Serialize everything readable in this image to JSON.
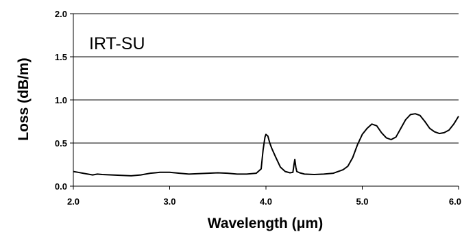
{
  "chart_data": {
    "type": "line",
    "title": "",
    "xlabel": "Wavelength (μm)",
    "ylabel": "Loss (dB/m)",
    "xlim": [
      2.0,
      6.0
    ],
    "ylim": [
      0.0,
      2.0
    ],
    "x_ticks": [
      "2.0",
      "3.0",
      "4.0",
      "5.0",
      "6.0"
    ],
    "y_ticks": [
      "0.0",
      "0.5",
      "1.0",
      "1.5",
      "2.0"
    ],
    "grid": "horizontal",
    "legend": "none",
    "annotation": "IRT-SU",
    "line_color": "#000000",
    "series": [
      {
        "x": [
          2.0,
          2.05,
          2.1,
          2.15,
          2.2,
          2.25,
          2.3,
          2.4,
          2.5,
          2.6,
          2.7,
          2.75,
          2.8,
          2.85,
          2.9,
          3.0,
          3.1,
          3.2,
          3.3,
          3.4,
          3.5,
          3.6,
          3.7,
          3.8,
          3.9,
          3.95,
          3.97,
          3.99,
          4.0,
          4.02,
          4.04,
          4.06,
          4.1,
          4.15,
          4.2,
          4.25,
          4.28,
          4.29,
          4.3,
          4.31,
          4.32,
          4.35,
          4.4,
          4.5,
          4.6,
          4.7,
          4.8,
          4.85,
          4.9,
          4.95,
          5.0,
          5.05,
          5.1,
          5.15,
          5.2,
          5.25,
          5.3,
          5.35,
          5.4,
          5.45,
          5.5,
          5.55,
          5.6,
          5.65,
          5.7,
          5.75,
          5.8,
          5.85,
          5.9,
          5.95,
          6.0
        ],
        "y": [
          0.17,
          0.16,
          0.15,
          0.14,
          0.13,
          0.14,
          0.135,
          0.13,
          0.125,
          0.12,
          0.13,
          0.14,
          0.15,
          0.155,
          0.16,
          0.16,
          0.15,
          0.14,
          0.145,
          0.15,
          0.155,
          0.15,
          0.14,
          0.14,
          0.15,
          0.2,
          0.42,
          0.57,
          0.6,
          0.58,
          0.5,
          0.44,
          0.34,
          0.22,
          0.17,
          0.155,
          0.16,
          0.24,
          0.31,
          0.22,
          0.17,
          0.155,
          0.14,
          0.135,
          0.14,
          0.15,
          0.19,
          0.23,
          0.33,
          0.48,
          0.6,
          0.67,
          0.72,
          0.7,
          0.62,
          0.56,
          0.54,
          0.57,
          0.67,
          0.77,
          0.83,
          0.84,
          0.82,
          0.75,
          0.67,
          0.63,
          0.61,
          0.62,
          0.65,
          0.72,
          0.81
        ]
      }
    ]
  }
}
